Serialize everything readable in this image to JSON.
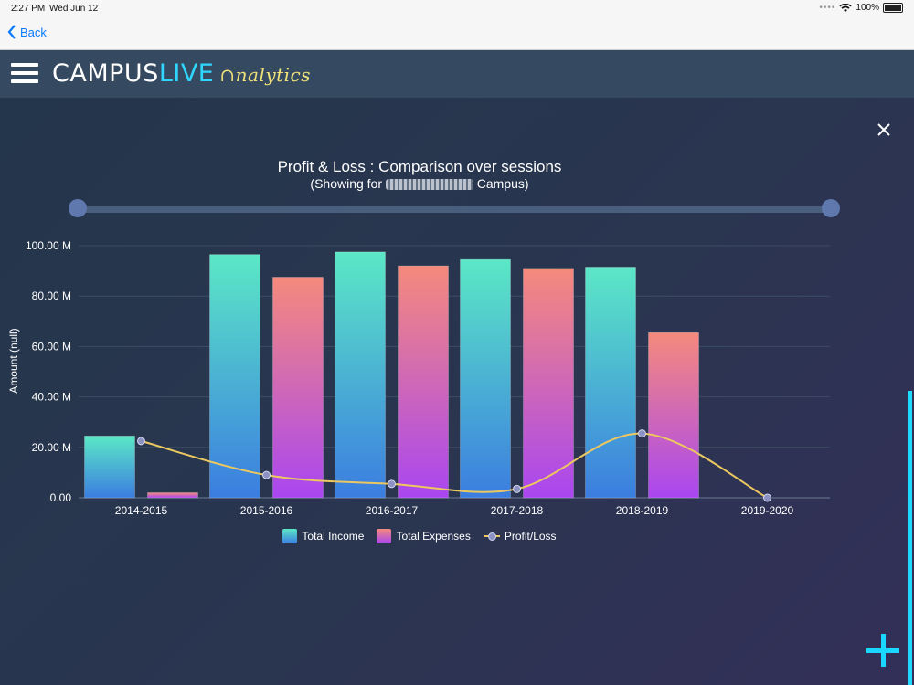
{
  "status_bar": {
    "time": "2:27 PM",
    "date": "Wed Jun 12",
    "signal": "••••",
    "battery": "100%"
  },
  "nav": {
    "back_label": "Back"
  },
  "app": {
    "brand_prefix": "CAMPUS",
    "brand_live": "LIVE",
    "brand_suffix": "nalytics"
  },
  "colors": {
    "accent": "#1fd9ff",
    "income_top": "#5be8c6",
    "income_bottom": "#3b7de0",
    "expenses_top": "#f58a7c",
    "expenses_bottom": "#a946f1",
    "line": "#ebc860"
  },
  "chart_data": {
    "type": "bar",
    "title": "Profit & Loss : Comparison over sessions",
    "subtitle_prefix": "(Showing for",
    "subtitle_suffix": "Campus)",
    "ylabel": "Amount (null)",
    "ylim": [
      0,
      100
    ],
    "y_ticks": [
      "0.00",
      "20.00 M",
      "40.00 M",
      "60.00 M",
      "80.00 M",
      "100.00 M"
    ],
    "grid": true,
    "legend_position": "bottom",
    "categories": [
      "2014-2015",
      "2015-2016",
      "2016-2017",
      "2017-2018",
      "2018-2019",
      "2019-2020"
    ],
    "series": [
      {
        "name": "Total Income",
        "type": "bar",
        "values": [
          24.5,
          96.5,
          97.5,
          94.5,
          91.5,
          0
        ]
      },
      {
        "name": "Total Expenses",
        "type": "bar",
        "values": [
          2,
          87.5,
          92,
          91,
          65.5,
          0
        ]
      },
      {
        "name": "Profit/Loss",
        "type": "line",
        "values": [
          22.5,
          9,
          5.5,
          3.5,
          25.5,
          0
        ]
      }
    ]
  }
}
